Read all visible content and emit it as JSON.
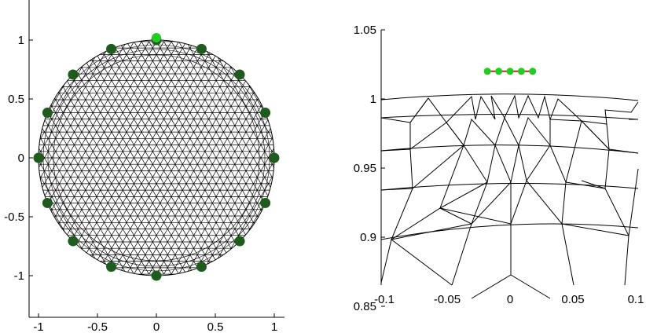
{
  "chart_data": [
    {
      "type": "scatter",
      "title": "",
      "xlabel": "",
      "ylabel": "",
      "xlim": [
        -1.1,
        1.1
      ],
      "ylim": [
        -1.35,
        1.35
      ],
      "xticks": [
        -1,
        -0.5,
        0,
        0.5,
        1
      ],
      "xtick_labels": [
        "-1",
        "-0.5",
        "0",
        "0.5",
        "1"
      ],
      "yticks": [
        1,
        0.5,
        0,
        -0.5,
        -1
      ],
      "ytick_labels": [
        "1",
        "0.5",
        "0",
        "-0.5",
        "-1"
      ],
      "grid": false,
      "mesh": {
        "shape": "disk",
        "center": [
          0,
          0
        ],
        "radius": 1,
        "style": "triangular mesh"
      },
      "series": [
        {
          "marker": "circle",
          "color": "#1e5c1e",
          "x": [
            0,
            0.383,
            0.707,
            0.924,
            1,
            0.924,
            0.707,
            0.383,
            0,
            -0.383,
            -0.707,
            -0.924,
            -1,
            -0.924,
            -0.707,
            -0.383
          ],
          "y": [
            1,
            0.924,
            0.707,
            0.383,
            0,
            -0.383,
            -0.707,
            -0.924,
            -1,
            -0.924,
            -0.707,
            -0.383,
            0,
            0.383,
            0.707,
            0.924
          ]
        },
        {
          "marker": "circle",
          "color": "#22cc22",
          "x": [
            0
          ],
          "y": [
            1.02
          ]
        }
      ]
    },
    {
      "type": "line",
      "title": "",
      "xlabel": "",
      "ylabel": "",
      "xlim": [
        -0.1,
        0.1
      ],
      "ylim": [
        0.85,
        1.05
      ],
      "xticks": [
        -0.1,
        -0.05,
        0,
        0.05,
        0.1
      ],
      "xtick_labels": [
        "-0.1",
        "-0.05",
        "0",
        "0.05",
        "0.1"
      ],
      "yticks": [
        1.05,
        1,
        0.95,
        0.9,
        0.85
      ],
      "ytick_labels": [
        "1.05",
        "1",
        "0.95",
        "0.9",
        "0.85"
      ],
      "grid": false,
      "series": [
        {
          "marker": "circle",
          "color": "#22cc22",
          "line_color": "#cc2222",
          "x": [
            -0.018,
            -0.009,
            0,
            0.009,
            0.018
          ],
          "y": [
            1.02,
            1.02,
            1.02,
            1.02,
            1.02
          ]
        }
      ]
    }
  ]
}
